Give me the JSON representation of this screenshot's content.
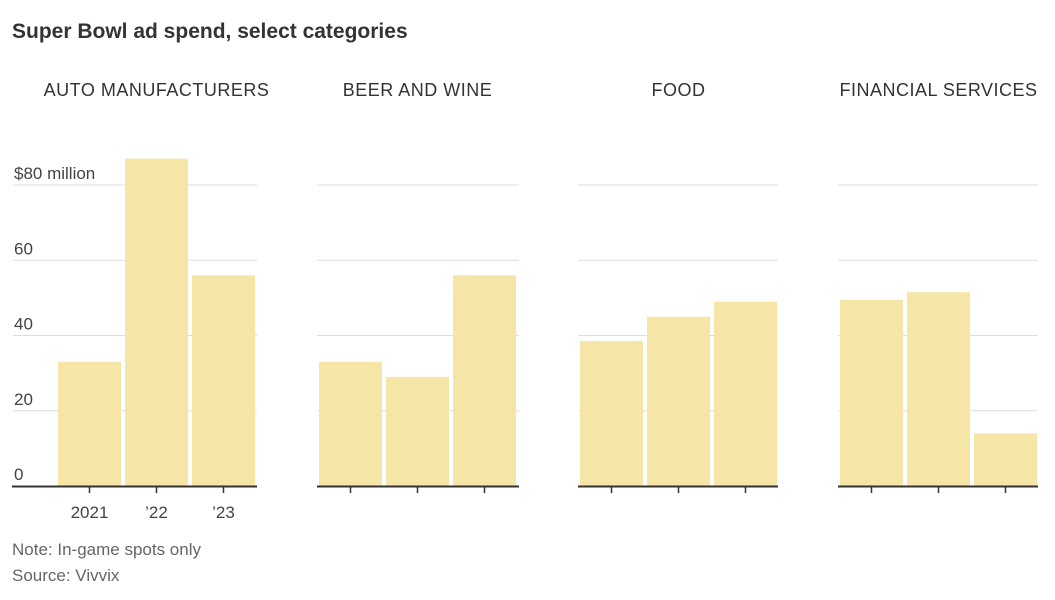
{
  "title": "Super Bowl ad spend, select categories",
  "note": "Note: In-game spots only",
  "source": "Source: Vivvix",
  "colors": {
    "bar": "#f5e6a8",
    "grid": "#dddddd",
    "axis": "#333333"
  },
  "chart_data": {
    "type": "bar",
    "layout": "small-multiples",
    "categories": [
      "2021",
      "’22",
      "’23"
    ],
    "ylim": [
      0,
      80
    ],
    "yticks": [
      0,
      20,
      40,
      60,
      80
    ],
    "ytick_labels": [
      "0",
      "20",
      "40",
      "60",
      "$80 million"
    ],
    "grid": true,
    "panels": [
      {
        "name": "AUTO MANUFACTURERS",
        "values": [
          33,
          87,
          56
        ]
      },
      {
        "name": "BEER AND WINE",
        "values": [
          33,
          29,
          56
        ]
      },
      {
        "name": "FOOD",
        "values": [
          38.5,
          45,
          49
        ]
      },
      {
        "name": "FINANCIAL SERVICES",
        "values": [
          49.5,
          51.5,
          14
        ]
      }
    ]
  }
}
